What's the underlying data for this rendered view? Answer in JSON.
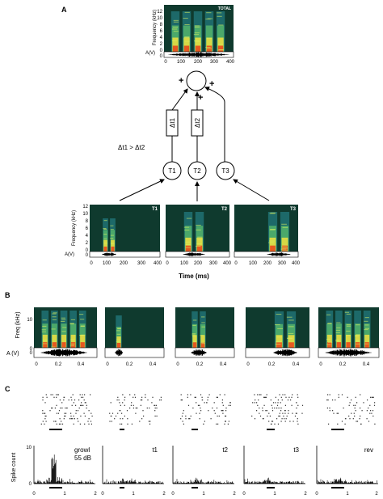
{
  "panels": {
    "a": {
      "label": "A",
      "total_tag": "TOTAL",
      "ylabel": "Frequency (kHz)",
      "wave_label": "A(V)",
      "xticks": [
        "0",
        "100",
        "200",
        "300",
        "400"
      ],
      "yticks": [
        "0",
        "2",
        "4",
        "6",
        "8",
        "10",
        "12"
      ],
      "wave_ticks": [
        "0"
      ],
      "sum_plus": [
        "+",
        "+",
        "+"
      ],
      "delays": [
        "Δt1",
        "Δt2"
      ],
      "constraint": "Δt1 > Δt2",
      "nodes": [
        "T1",
        "T2",
        "T3"
      ],
      "small_tags": [
        "T1",
        "T2",
        "T3"
      ],
      "xlabel": "Time (ms)"
    },
    "b": {
      "label": "B",
      "ylabel": "Freq (kHz)",
      "wave_label": "A (V)",
      "wave_tick": "0",
      "yticks": [
        "0",
        "10"
      ],
      "xticks": [
        "0",
        "0.2",
        "0.4"
      ]
    },
    "c": {
      "label": "C",
      "ylabel": "Spike count",
      "yticks": [
        "0",
        "10"
      ],
      "xticks": [
        "0",
        "1",
        "2"
      ],
      "names": [
        "growl",
        "t1",
        "t2",
        "t3",
        "rev"
      ],
      "level": "55 dB"
    }
  },
  "colors": {
    "spectrogram_bg": "#0f3a2e",
    "ink": "#000000"
  }
}
